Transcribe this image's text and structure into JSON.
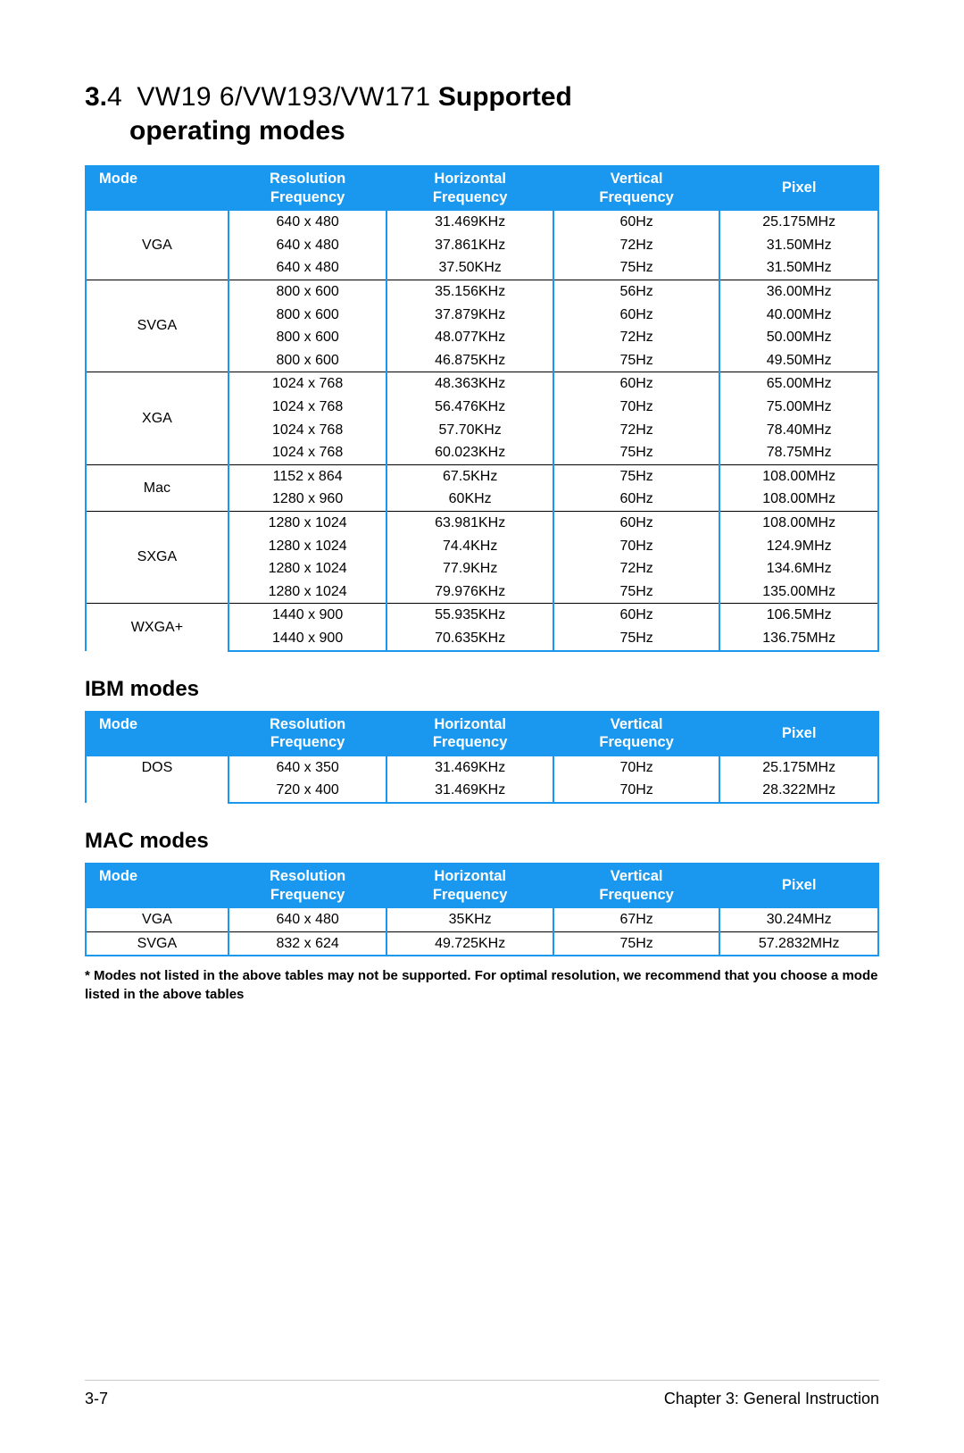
{
  "colors": {
    "header_bg": "#1a98ef",
    "header_text": "#ffffff",
    "border_blue": "#1a98ef",
    "row_separator": "#000000",
    "background": "#ffffff"
  },
  "title": {
    "section_num": "3.",
    "section_sub": "4",
    "models": "VW19  6/VW193/VW171",
    "supported": "Supported",
    "operating": "operating modes"
  },
  "headers": {
    "mode": "Mode",
    "resolution_l1": "Resolution",
    "resolution_l2": "Frequency",
    "horizontal_l1": "Horizontal",
    "horizontal_l2": "Frequency",
    "vertical_l1": "Vertical",
    "vertical_l2": "Frequency",
    "pixel": "Pixel"
  },
  "main_table": [
    {
      "mode": "VGA",
      "rows": [
        {
          "res": "640 x 480",
          "h": "31.469KHz",
          "v": "60Hz",
          "p": "25.175MHz"
        },
        {
          "res": "640 x 480",
          "h": "37.861KHz",
          "v": "72Hz",
          "p": "31.50MHz"
        },
        {
          "res": "640 x 480",
          "h": "37.50KHz",
          "v": "75Hz",
          "p": "31.50MHz"
        }
      ]
    },
    {
      "mode": "SVGA",
      "rows": [
        {
          "res": "800 x 600",
          "h": "35.156KHz",
          "v": "56Hz",
          "p": "36.00MHz"
        },
        {
          "res": "800 x 600",
          "h": "37.879KHz",
          "v": "60Hz",
          "p": "40.00MHz"
        },
        {
          "res": "800 x 600",
          "h": "48.077KHz",
          "v": "72Hz",
          "p": "50.00MHz"
        },
        {
          "res": "800 x 600",
          "h": "46.875KHz",
          "v": "75Hz",
          "p": "49.50MHz"
        }
      ]
    },
    {
      "mode": "XGA",
      "rows": [
        {
          "res": "1024 x 768",
          "h": "48.363KHz",
          "v": "60Hz",
          "p": "65.00MHz"
        },
        {
          "res": "1024 x 768",
          "h": "56.476KHz",
          "v": "70Hz",
          "p": "75.00MHz"
        },
        {
          "res": "1024 x 768",
          "h": "57.70KHz",
          "v": "72Hz",
          "p": "78.40MHz"
        },
        {
          "res": "1024 x 768",
          "h": "60.023KHz",
          "v": "75Hz",
          "p": "78.75MHz"
        }
      ]
    },
    {
      "mode": "Mac",
      "rows": [
        {
          "res": "1152 x 864",
          "h": "67.5KHz",
          "v": "75Hz",
          "p": "108.00MHz"
        },
        {
          "res": "1280 x 960",
          "h": "60KHz",
          "v": "60Hz",
          "p": "108.00MHz"
        }
      ]
    },
    {
      "mode": "SXGA",
      "rows": [
        {
          "res": "1280 x 1024",
          "h": "63.981KHz",
          "v": "60Hz",
          "p": "108.00MHz"
        },
        {
          "res": "1280 x 1024",
          "h": "74.4KHz",
          "v": "70Hz",
          "p": "124.9MHz"
        },
        {
          "res": "1280 x 1024",
          "h": "77.9KHz",
          "v": "72Hz",
          "p": "134.6MHz"
        },
        {
          "res": "1280 x 1024",
          "h": "79.976KHz",
          "v": "75Hz",
          "p": "135.00MHz"
        }
      ]
    },
    {
      "mode": "WXGA+",
      "rows": [
        {
          "res": "1440 x 900",
          "h": "55.935KHz",
          "v": "60Hz",
          "p": "106.5MHz"
        },
        {
          "res": "1440 x 900",
          "h": "70.635KHz",
          "v": "75Hz",
          "p": "136.75MHz"
        }
      ]
    }
  ],
  "ibm_title": "IBM modes",
  "ibm_table": [
    {
      "mode": "DOS",
      "rows": [
        {
          "res": "640 x 350",
          "h": "31.469KHz",
          "v": "70Hz",
          "p": "25.175MHz"
        },
        {
          "res": "720 x 400",
          "h": "31.469KHz",
          "v": "70Hz",
          "p": "28.322MHz"
        }
      ]
    }
  ],
  "mac_title": "MAC modes",
  "mac_table": [
    {
      "mode": "VGA",
      "rows": [
        {
          "res": "640 x 480",
          "h": "35KHz",
          "v": "67Hz",
          "p": "30.24MHz"
        }
      ]
    },
    {
      "mode": "SVGA",
      "rows": [
        {
          "res": "832 x 624",
          "h": "49.725KHz",
          "v": "75Hz",
          "p": "57.2832MHz"
        }
      ]
    }
  ],
  "footnote": "* Modes not listed in the above tables may not be supported. For optimal resolution, we recommend that you choose a mode listed in the above tables",
  "footer": {
    "page": "3-7",
    "chapter": "Chapter 3: General Instruction"
  }
}
